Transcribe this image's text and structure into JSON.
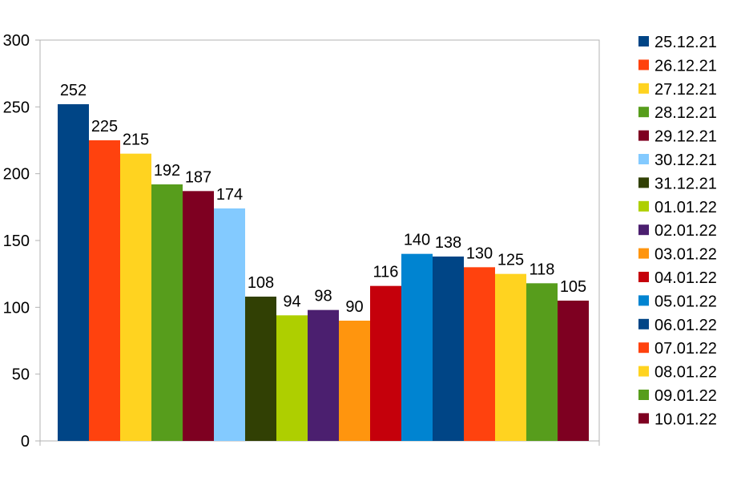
{
  "chart_data": {
    "type": "bar",
    "title": "",
    "xlabel": "",
    "ylabel": "",
    "ylim": [
      0,
      300
    ],
    "yticks": [
      "0",
      "50",
      "100",
      "150",
      "200",
      "250",
      "300"
    ],
    "grid": false,
    "legend_position": "right",
    "series": [
      {
        "name": "25.12.21",
        "value": 252,
        "color": "#004586"
      },
      {
        "name": "26.12.21",
        "value": 225,
        "color": "#ff420e"
      },
      {
        "name": "27.12.21",
        "value": 215,
        "color": "#ffd320"
      },
      {
        "name": "28.12.21",
        "value": 192,
        "color": "#579d1c"
      },
      {
        "name": "29.12.21",
        "value": 187,
        "color": "#7e0021"
      },
      {
        "name": "30.12.21",
        "value": 174,
        "color": "#83caff"
      },
      {
        "name": "31.12.21",
        "value": 108,
        "color": "#314004"
      },
      {
        "name": "01.01.22",
        "value": 94,
        "color": "#aecf00"
      },
      {
        "name": "02.01.22",
        "value": 98,
        "color": "#4b1f6f"
      },
      {
        "name": "03.01.22",
        "value": 90,
        "color": "#ff950e"
      },
      {
        "name": "04.01.22",
        "value": 116,
        "color": "#c5000b"
      },
      {
        "name": "05.01.22",
        "value": 140,
        "color": "#0084d1"
      },
      {
        "name": "06.01.22",
        "value": 138,
        "color": "#004586"
      },
      {
        "name": "07.01.22",
        "value": 130,
        "color": "#ff420e"
      },
      {
        "name": "08.01.22",
        "value": 125,
        "color": "#ffd320"
      },
      {
        "name": "09.01.22",
        "value": 118,
        "color": "#579d1c"
      },
      {
        "name": "10.01.22",
        "value": 105,
        "color": "#7e0021"
      }
    ]
  }
}
